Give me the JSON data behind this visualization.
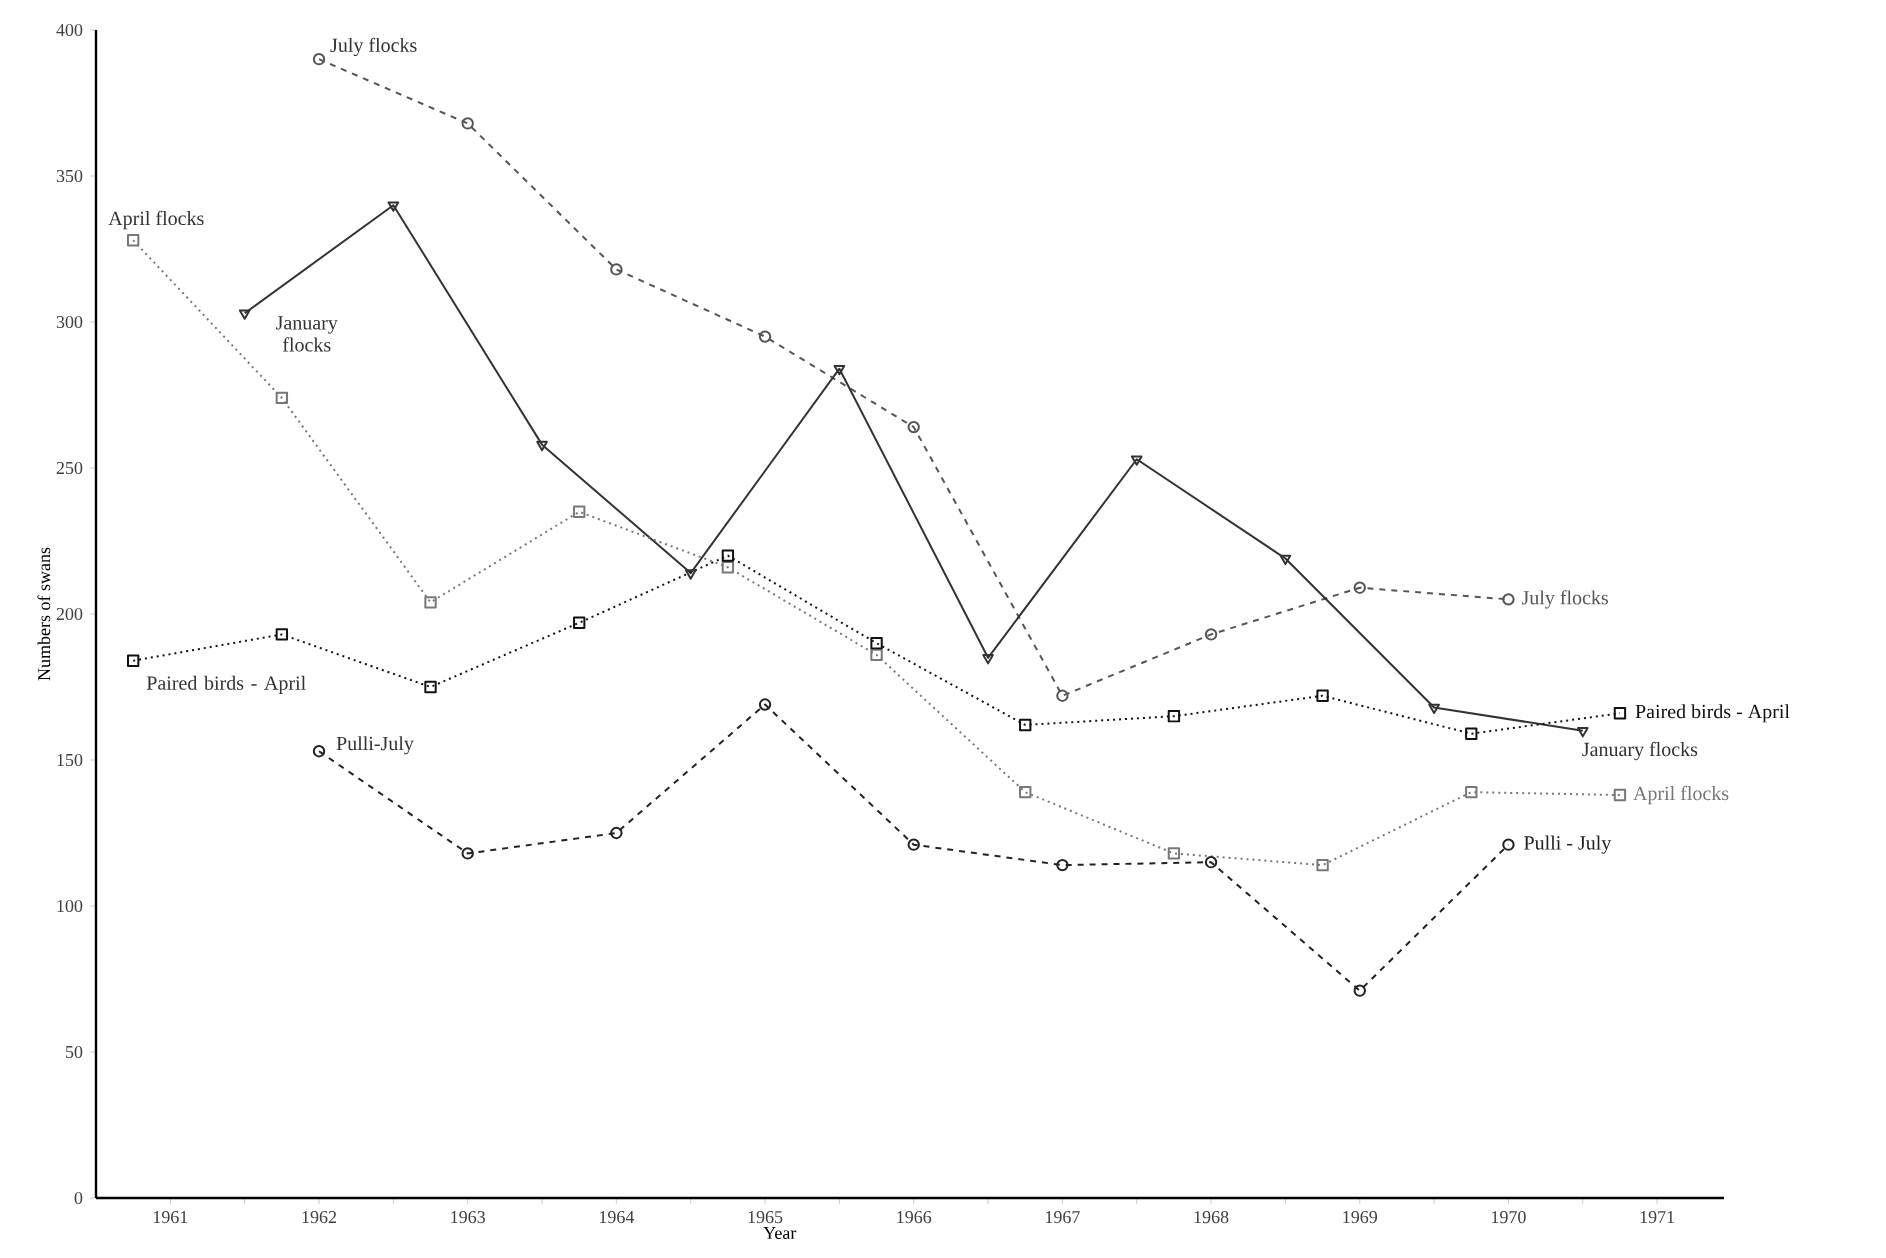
{
  "chart_data": {
    "type": "line",
    "xlabel": "Year",
    "ylabel": "Numbers of swans",
    "xlim": [
      1960.5,
      1971.45
    ],
    "ylim": [
      0,
      400
    ],
    "xticks": [
      {
        "value": 1961,
        "label": "1961"
      },
      {
        "value": 1961.5,
        "label": null
      },
      {
        "value": 1962,
        "label": "1962"
      },
      {
        "value": 1962.5,
        "label": null
      },
      {
        "value": 1963,
        "label": "1963"
      },
      {
        "value": 1963.5,
        "label": null
      },
      {
        "value": 1964,
        "label": "1964"
      },
      {
        "value": 1964.5,
        "label": null
      },
      {
        "value": 1965,
        "label": "1965"
      },
      {
        "value": 1965.5,
        "label": null
      },
      {
        "value": 1966,
        "label": "1966"
      },
      {
        "value": 1966.5,
        "label": null
      },
      {
        "value": 1967,
        "label": "1967"
      },
      {
        "value": 1967.5,
        "label": null
      },
      {
        "value": 1968,
        "label": "1968"
      },
      {
        "value": 1968.5,
        "label": null
      },
      {
        "value": 1969,
        "label": "1969"
      },
      {
        "value": 1969.5,
        "label": null
      },
      {
        "value": 1970,
        "label": "1970"
      },
      {
        "value": 1970.5,
        "label": null
      },
      {
        "value": 1971,
        "label": "1971"
      }
    ],
    "yticks": [
      0,
      50,
      100,
      150,
      200,
      250,
      300,
      350,
      400
    ],
    "grid": false,
    "series": [
      {
        "name": "July flocks",
        "color": "#555555",
        "marker": "circle",
        "line_style": "dashed",
        "x": [
          1962,
          1963,
          1964,
          1965,
          1966,
          1967,
          1968,
          1969,
          1970
        ],
        "values": [
          390,
          368,
          318,
          295,
          264,
          172,
          193,
          209,
          205
        ]
      },
      {
        "name": "January flocks",
        "color": "#333333",
        "marker": "triangle",
        "line_style": "solid",
        "x": [
          1961.5,
          1962.5,
          1963.5,
          1964.5,
          1965.5,
          1966.5,
          1967.5,
          1968.5,
          1969.5,
          1970.5
        ],
        "values": [
          303,
          340,
          258,
          214,
          284,
          185,
          253,
          219,
          168,
          160
        ]
      },
      {
        "name": "April flocks",
        "color": "#777777",
        "marker": "square",
        "line_style": "dotted",
        "x": [
          1960.75,
          1961.75,
          1962.75,
          1963.75,
          1964.75,
          1965.75,
          1966.75,
          1967.75,
          1968.75,
          1969.75,
          1970.75
        ],
        "values": [
          328,
          274,
          204,
          235,
          216,
          186,
          139,
          118,
          114,
          139,
          138
        ]
      },
      {
        "name": "Paired birds - April",
        "color": "#111111",
        "marker": "square",
        "line_style": "dotted",
        "x": [
          1960.75,
          1961.75,
          1962.75,
          1963.75,
          1964.75,
          1965.75,
          1966.75,
          1967.75,
          1968.75,
          1969.75,
          1970.75
        ],
        "values": [
          184,
          193,
          175,
          197,
          220,
          190,
          162,
          165,
          172,
          159,
          166
        ]
      },
      {
        "name": "Pulli - July",
        "color": "#222222",
        "marker": "circle",
        "line_style": "dashed",
        "x": [
          1962,
          1963,
          1964,
          1965,
          1966,
          1967,
          1968,
          1969,
          1970
        ],
        "values": [
          153,
          118,
          125,
          169,
          121,
          114,
          115,
          71,
          121
        ]
      }
    ],
    "annotations": [
      {
        "text": "July flocks",
        "x": 1962,
        "y": 390
      },
      {
        "text": "January flocks",
        "x": 1961.5,
        "y": 303
      },
      {
        "text": "April flocks",
        "x": 1960.75,
        "y": 328
      },
      {
        "text": "Paired birds - April",
        "x": 1960.75,
        "y": 184
      },
      {
        "text": "Pulli-July",
        "x": 1962,
        "y": 153
      }
    ]
  }
}
